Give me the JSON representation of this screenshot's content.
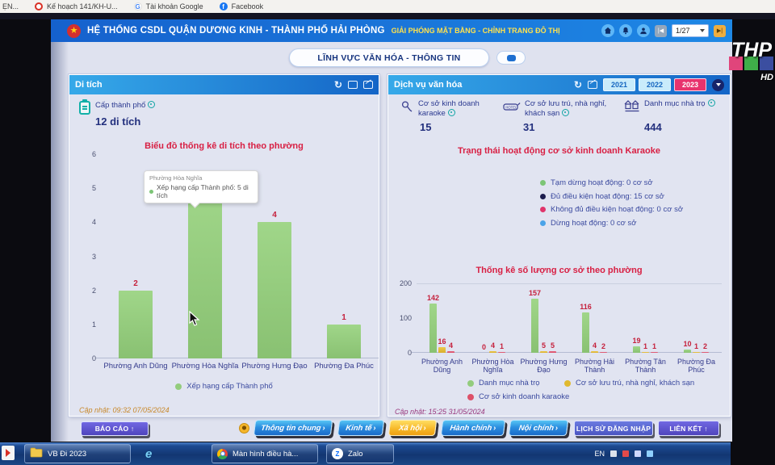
{
  "colors": {
    "header_blue": "#1e6fd9",
    "accent_yellow": "#ffe14d",
    "panel_gradient_start": "#36a9e9",
    "panel_gradient_end": "#1465c7",
    "chart_title_red": "#d81f43",
    "bar_green": "#93cc7d",
    "bar_yellow": "#e0b92f",
    "bar_red": "#dd5169",
    "active_year_pink": "#e8336e",
    "stat_text": "#2b3990"
  },
  "browser": {
    "bookmarks": [
      {
        "icon": "none",
        "label": "ẸN..."
      },
      {
        "icon": "red-circle",
        "label": "Kế hoạch 141/KH-U..."
      },
      {
        "icon": "google-g",
        "label": "Tài khoản Google"
      },
      {
        "icon": "facebook",
        "label": "Facebook"
      }
    ]
  },
  "header": {
    "title": "HỆ THỐNG CSDL QUẬN DƯƠNG KINH - THÀNH PHỐ HẢI PHÒNG",
    "subtitle": "GIẢI PHÓNG MẶT BẰNG - CHỈNH TRANG ĐÔ THỊ",
    "icons": [
      "home-icon",
      "bell-icon",
      "user-icon"
    ],
    "pager_value": "1/27"
  },
  "section": {
    "title": "LĨNH VỰC VĂN HÓA - THÔNG TIN"
  },
  "left_panel": {
    "title": "Di tích",
    "stat_label": "Cấp thành phố",
    "stat_value": "12 di tích",
    "tooltip_title": "Phường Hòa Nghĩa",
    "tooltip_text": "Xếp hạng cấp Thành phố: 5 di tích",
    "updated": "Cập nhật: 09:32 07/05/2024"
  },
  "right_panel": {
    "title": "Dịch vụ văn hóa",
    "years": [
      "2021",
      "2022",
      "2023"
    ],
    "active_year": "2023",
    "stats": [
      {
        "icon": "karaoke-mic-icon",
        "label": "Cơ sở kinh doanh karaoke",
        "value": "15"
      },
      {
        "icon": "hotel-icon",
        "label": "Cơ sở lưu trú, nhà nghỉ, khách sạn",
        "value": "31"
      },
      {
        "icon": "boarding-house-icon",
        "label": "Danh mục nhà trọ",
        "value": "444"
      }
    ],
    "status_title": "Trạng thái hoạt động cơ sở kinh doanh Karaoke",
    "status_legend": [
      {
        "label": "Tạm dừng hoạt động: 0 cơ sở",
        "color": "#7cc576"
      },
      {
        "label": "Đủ điều kiện hoạt động: 15 cơ sở",
        "color": "#1d1d4e"
      },
      {
        "label": "Không đủ điều kiện hoạt động: 0 cơ sở",
        "color": "#e0356b"
      },
      {
        "label": "Dừng hoạt động: 0 cơ sở",
        "color": "#4aa3e8"
      }
    ],
    "updated": "Cập nhật: 15:25 31/05/2024"
  },
  "chart_data": [
    {
      "type": "bar",
      "title": "Biểu đồ thống kê di tích theo phường",
      "categories": [
        "Phường Anh Dũng",
        "Phường Hòa Nghĩa",
        "Phường Hưng Đạo",
        "Phường Đa Phúc"
      ],
      "series": [
        {
          "name": "Xếp hạng cấp Thành phố",
          "color": "#93cc7d",
          "values": [
            2,
            5,
            4,
            1
          ]
        }
      ],
      "ylim": [
        0,
        6
      ],
      "yticks": [
        0,
        1,
        2,
        3,
        4,
        5,
        6
      ],
      "legend_position": "bottom",
      "grid": false
    },
    {
      "type": "bar",
      "title": "Thống kê số lượng cơ sở theo phường",
      "categories": [
        "Phường Anh Dũng",
        "Phường Hòa Nghĩa",
        "Phường Hưng Đạo",
        "Phường Hải Thành",
        "Phường Tân Thành",
        "Phường Đa Phúc"
      ],
      "series": [
        {
          "name": "Danh mục nhà trọ",
          "color": "#93cc7d",
          "values": [
            142,
            0,
            157,
            116,
            19,
            10
          ]
        },
        {
          "name": "Cơ sở lưu trú, nhà nghỉ, khách sạn",
          "color": "#e0b92f",
          "values": [
            16,
            4,
            5,
            4,
            1,
            1
          ]
        },
        {
          "name": "Cơ sở kinh doanh karaoke",
          "color": "#dd5169",
          "values": [
            4,
            1,
            5,
            2,
            1,
            2
          ]
        }
      ],
      "ylim": [
        0,
        200
      ],
      "yticks": [
        0,
        100,
        200
      ],
      "legend_position": "bottom",
      "grid": true
    }
  ],
  "footer": {
    "report_label": "BÁO CÁO ↑",
    "nav_buttons": [
      {
        "label": "Thông tin chung",
        "active": false
      },
      {
        "label": "Kinh tế",
        "active": false
      },
      {
        "label": "Xã hội",
        "active": true
      },
      {
        "label": "Hành chính",
        "active": false
      },
      {
        "label": "Nội chính",
        "active": false
      }
    ],
    "history_label": "LỊCH SỬ ĐĂNG NHẬP",
    "links_label": "LIÊN KẾT ↑"
  },
  "taskbar": {
    "items": [
      {
        "icon": "folder-icon",
        "label": "VB Đi 2023"
      },
      {
        "icon": "ie-icon",
        "label": ""
      },
      {
        "icon": "firefox-icon",
        "label": ""
      },
      {
        "icon": "chrome-icon",
        "label": "Màn hình điều hà..."
      },
      {
        "icon": "zalo-icon",
        "label": "Zalo"
      }
    ],
    "tray_language": "EN"
  },
  "watermark": {
    "text": "THP",
    "hd": "HD"
  }
}
